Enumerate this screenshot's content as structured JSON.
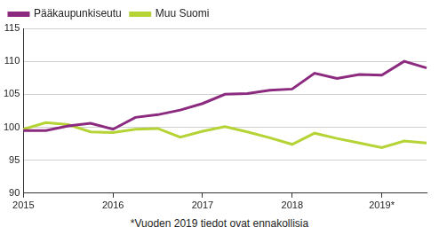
{
  "chart_data": {
    "type": "line",
    "categories": [
      "2015",
      null,
      null,
      null,
      "2016",
      null,
      null,
      null,
      "2017",
      null,
      null,
      null,
      "2018",
      null,
      null,
      null,
      "2019*",
      null,
      null
    ],
    "series": [
      {
        "name": "Pääkaupunkiseutu",
        "color": "#8b2a7e",
        "values": [
          99.5,
          99.5,
          100.2,
          100.6,
          99.7,
          101.5,
          101.9,
          102.6,
          103.6,
          105.0,
          105.1,
          105.6,
          105.8,
          108.2,
          107.4,
          108.0,
          107.9,
          110.0,
          109.0
        ]
      },
      {
        "name": "Muu Suomi",
        "color": "#b5d334",
        "values": [
          99.7,
          100.7,
          100.4,
          99.3,
          99.2,
          99.7,
          99.8,
          98.5,
          99.4,
          100.1,
          99.3,
          98.4,
          97.4,
          99.1,
          98.3,
          97.6,
          96.9,
          97.9,
          97.6
        ]
      }
    ],
    "ylim": [
      90,
      115
    ],
    "yticks": [
      90,
      95,
      100,
      105,
      110,
      115
    ],
    "grid": true,
    "legend": "upper left",
    "annotations": [
      "*Vuoden 2019 tiedot ovat ennakollisia"
    ]
  }
}
